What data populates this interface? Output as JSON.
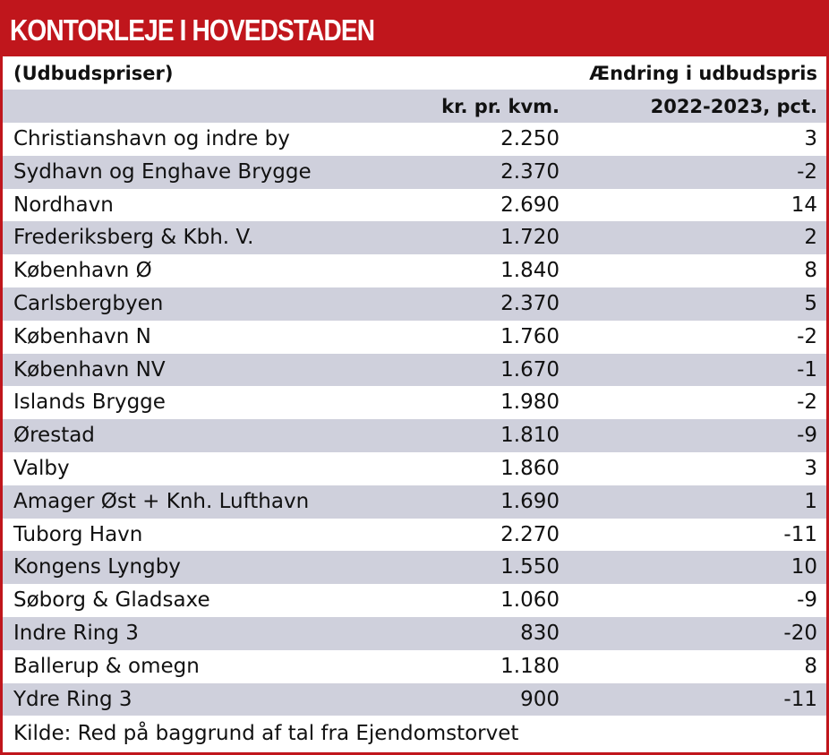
{
  "header": {
    "title": "KONTORLEJE I HOVEDSTADEN",
    "subtitle": "(Udbudspriser)",
    "column_1": "kr. pr. kvm.",
    "column_2_line_1": "Ændring i udbudspris",
    "column_2_line_2": "2022-2023, pct."
  },
  "table": {
    "rows": [
      [
        "Christianshavn og indre by",
        "2.250",
        "3"
      ],
      [
        "Sydhavn og Enghave Brygge",
        "2.370",
        "-2"
      ],
      [
        "Nordhavn",
        "2.690",
        "14"
      ],
      [
        "Frederiksberg & Kbh. V.",
        "1.720",
        "2"
      ],
      [
        "København Ø",
        "1.840",
        "8"
      ],
      [
        "Carlsbergbyen",
        "2.370",
        "5"
      ],
      [
        "København N",
        "1.760",
        "-2"
      ],
      [
        "København NV",
        "1.670",
        "-1"
      ],
      [
        "Islands Brygge",
        "1.980",
        "-2"
      ],
      [
        "Ørestad",
        "1.810",
        "-9"
      ],
      [
        "Valby",
        "1.860",
        "3"
      ],
      [
        "Amager Øst + Knh. Lufthavn",
        "1.690",
        "1"
      ],
      [
        "Tuborg Havn",
        "2.270",
        "-11"
      ],
      [
        "Kongens Lyngby",
        "1.550",
        "10"
      ],
      [
        "Søborg & Gladsaxe",
        "1.060",
        "-9"
      ],
      [
        "Indre Ring 3",
        "830",
        "-20"
      ],
      [
        "Ballerup & omegn",
        "1.180",
        "8"
      ],
      [
        "Ydre Ring 3",
        "900",
        "-11"
      ]
    ]
  },
  "footer": {
    "source": "Kilde: Red på baggrund af tal fra Ejendomstorvet"
  }
}
